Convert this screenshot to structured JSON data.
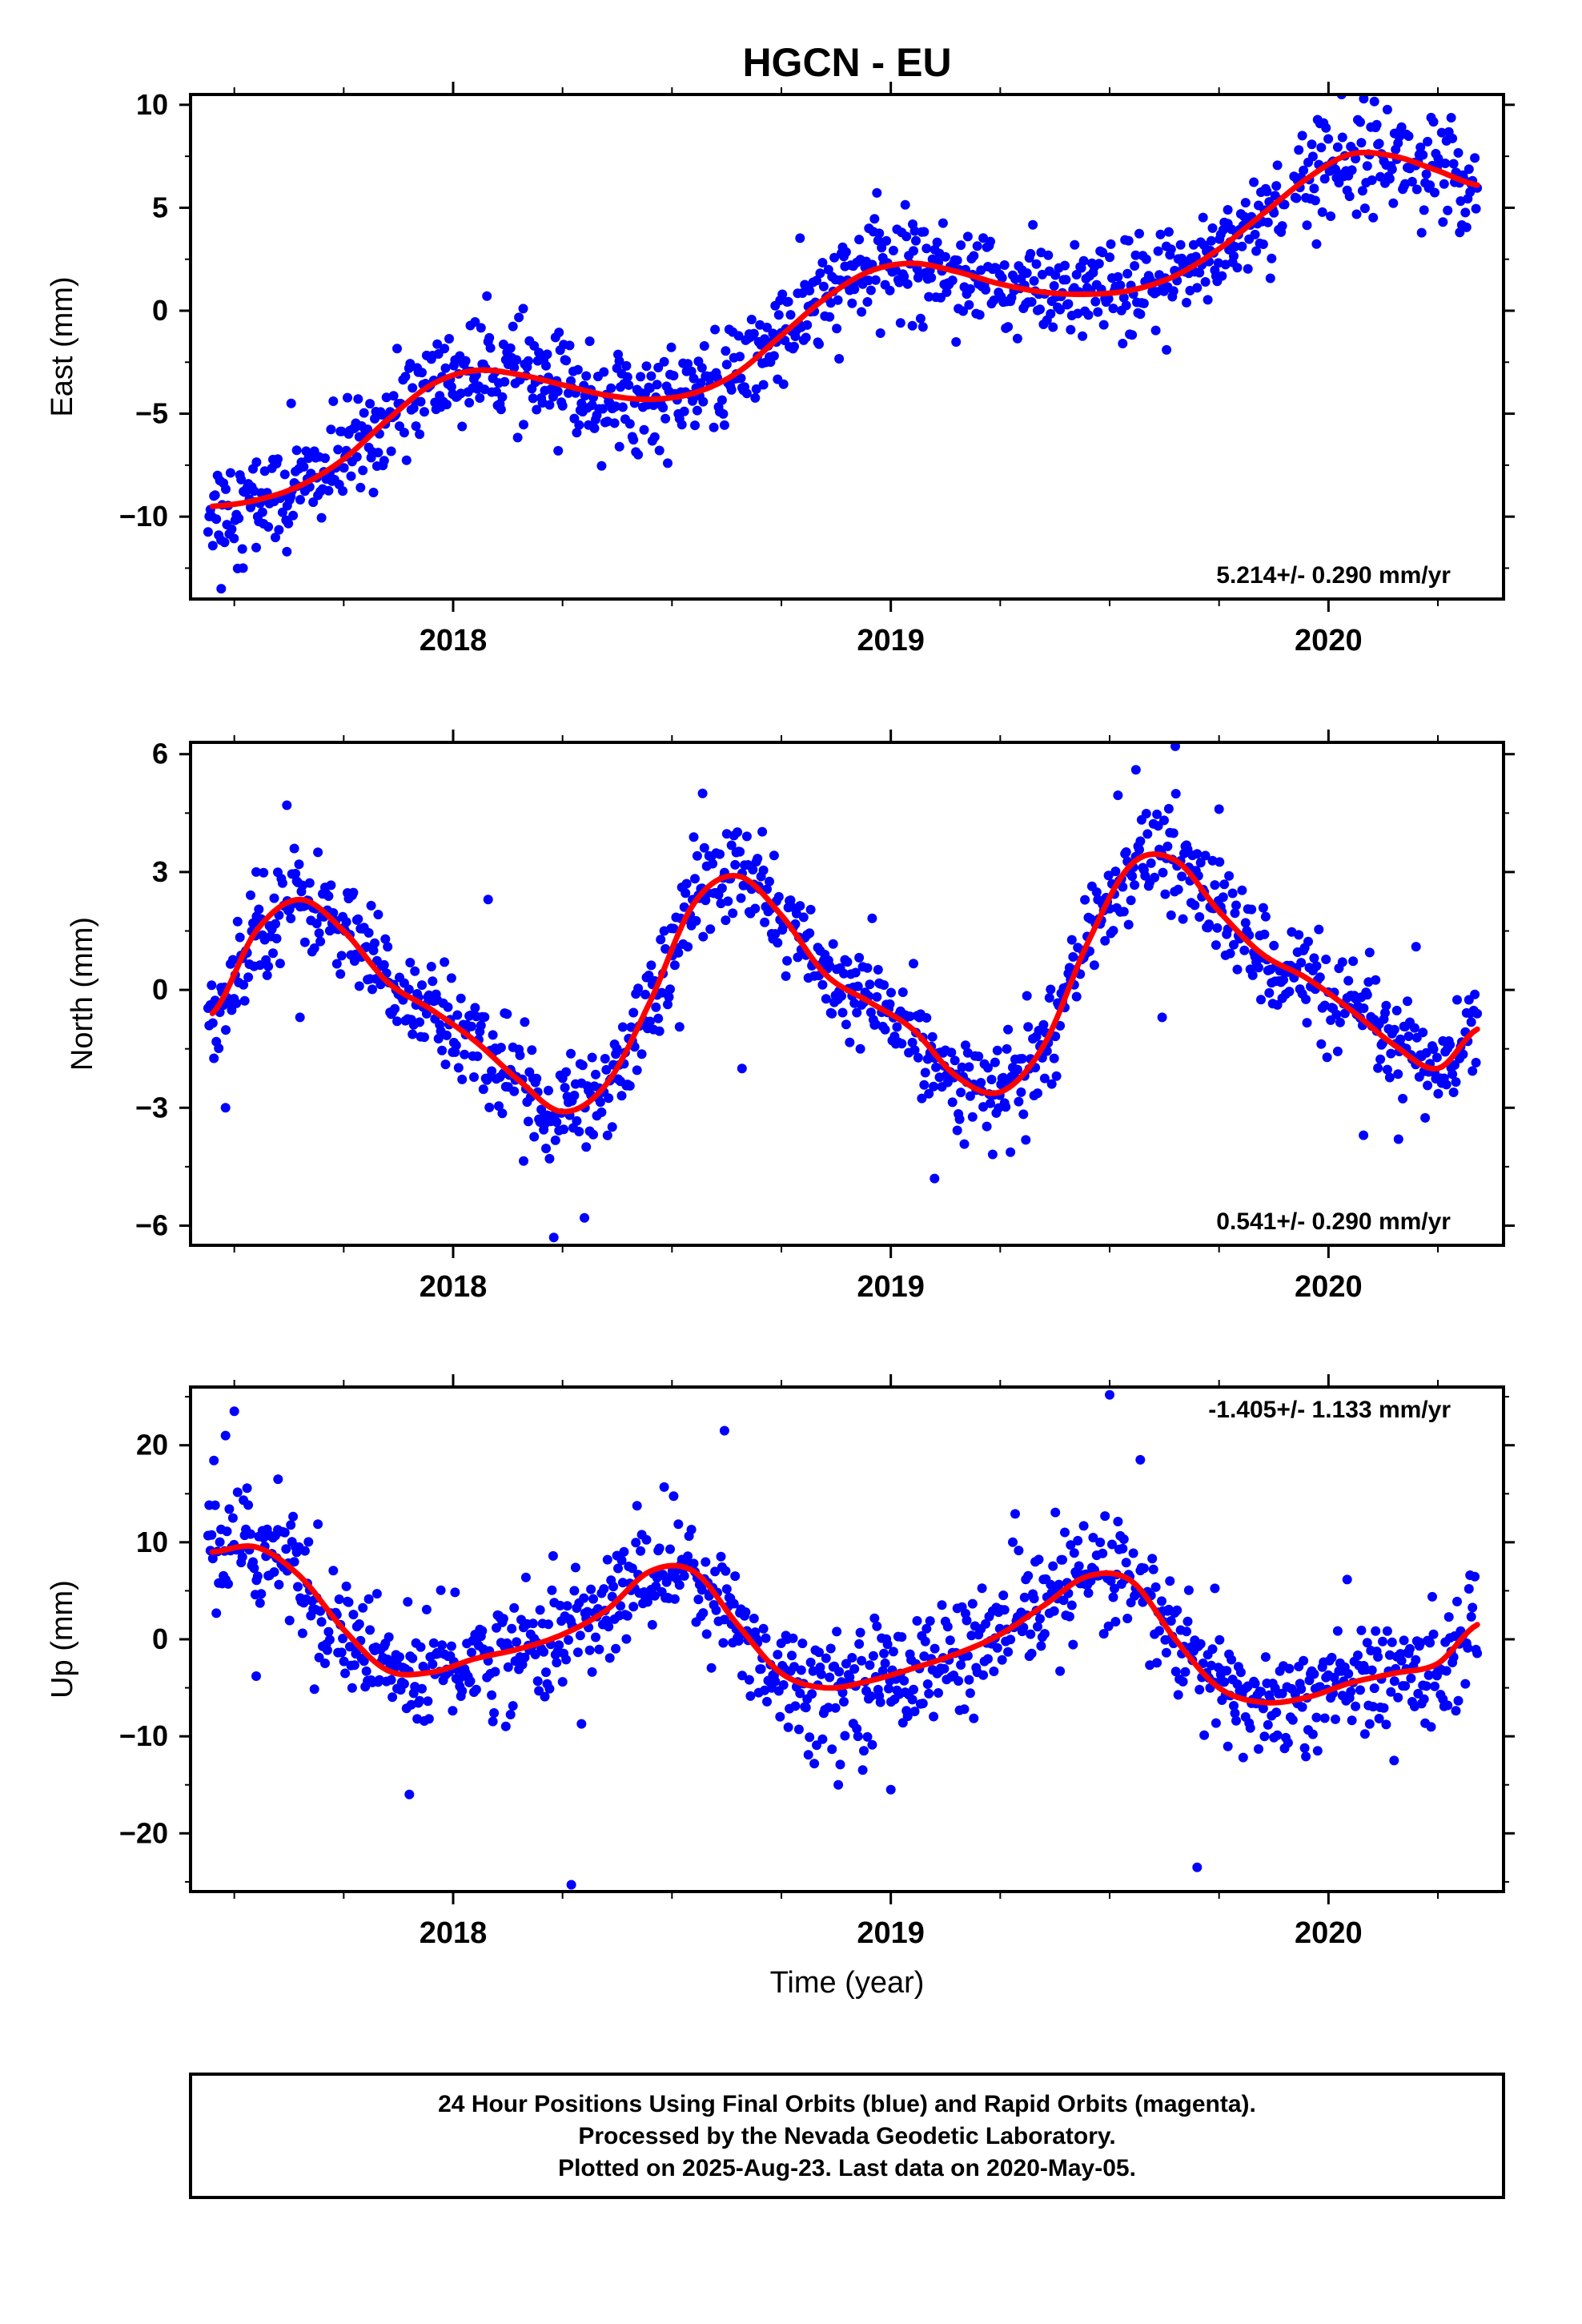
{
  "title": "HGCN - EU",
  "colors": {
    "points": "#0000ff",
    "fit": "#ff0000",
    "frame": "#000000"
  },
  "chart_data": [
    {
      "type": "scatter",
      "ylabel": "East (mm)",
      "xlim": [
        2017.4,
        2020.4
      ],
      "ylim": [
        -14,
        10.5
      ],
      "yticks": [
        "10",
        "5",
        "0",
        "−5",
        "−10"
      ],
      "ytick_values": [
        10,
        5,
        0,
        -5,
        -10
      ],
      "xticks": [
        "2018",
        "2019",
        "2020"
      ],
      "xtick_values": [
        2018,
        2019,
        2020
      ],
      "rate": "5.214+/- 0.290 mm/yr",
      "rate_pos": "bottom-right",
      "fit_x": [
        2017.45,
        2017.55,
        2017.65,
        2017.75,
        2017.85,
        2017.95,
        2018.05,
        2018.15,
        2018.25,
        2018.35,
        2018.45,
        2018.55,
        2018.65,
        2018.75,
        2018.85,
        2018.95,
        2019.05,
        2019.15,
        2019.25,
        2019.35,
        2019.45,
        2019.55,
        2019.65,
        2019.75,
        2019.85,
        2019.95,
        2020.05,
        2020.15,
        2020.25,
        2020.34
      ],
      "fit_y": [
        -9.5,
        -9.2,
        -8.5,
        -7.2,
        -5.3,
        -3.6,
        -2.9,
        -3.1,
        -3.6,
        -4.1,
        -4.3,
        -4.0,
        -3.0,
        -1.2,
        0.6,
        1.9,
        2.3,
        1.9,
        1.3,
        0.9,
        0.8,
        1.0,
        1.7,
        3.0,
        4.7,
        6.4,
        7.6,
        7.5,
        6.8,
        6.1
      ],
      "noise": 1.2,
      "outliers": [
        [
          2017.47,
          -13.5
        ],
        [
          2017.52,
          -12.5
        ],
        [
          2017.55,
          -11.5
        ],
        [
          2017.62,
          -11.7
        ],
        [
          2017.63,
          -4.5
        ],
        [
          2018.16,
          0.1
        ],
        [
          2018.24,
          -6.8
        ],
        [
          2018.38,
          -6.6
        ],
        [
          2018.95,
          4.0
        ],
        [
          2019.05,
          4.2
        ],
        [
          2019.42,
          3.2
        ],
        [
          2019.63,
          -1.9
        ],
        [
          2019.77,
          4.9
        ],
        [
          2020.03,
          10.5
        ],
        [
          2020.3,
          3.8
        ]
      ]
    },
    {
      "type": "scatter",
      "ylabel": "North (mm)",
      "xlim": [
        2017.4,
        2020.4
      ],
      "ylim": [
        -6.5,
        6.3
      ],
      "yticks": [
        "6",
        "3",
        "0",
        "−3",
        "−6"
      ],
      "ytick_values": [
        6,
        3,
        0,
        -3,
        -6
      ],
      "xticks": [
        "2018",
        "2019",
        "2020"
      ],
      "xtick_values": [
        2018,
        2019,
        2020
      ],
      "rate": "0.541+/- 0.290 mm/yr",
      "rate_pos": "bottom-right",
      "fit_x": [
        2017.45,
        2017.55,
        2017.65,
        2017.75,
        2017.85,
        2017.95,
        2018.05,
        2018.15,
        2018.25,
        2018.35,
        2018.45,
        2018.55,
        2018.65,
        2018.75,
        2018.85,
        2018.95,
        2019.05,
        2019.15,
        2019.25,
        2019.35,
        2019.45,
        2019.55,
        2019.65,
        2019.75,
        2019.85,
        2019.95,
        2020.05,
        2020.15,
        2020.25,
        2020.34
      ],
      "fit_y": [
        -0.6,
        1.5,
        2.3,
        1.5,
        0.2,
        -0.5,
        -1.3,
        -2.3,
        -3.1,
        -2.4,
        -0.3,
        2.2,
        2.9,
        1.9,
        0.4,
        -0.3,
        -1.0,
        -2.2,
        -2.6,
        -1.4,
        1.2,
        3.2,
        3.3,
        2.0,
        0.9,
        0.3,
        -0.5,
        -1.4,
        -2.0,
        -1.0
      ],
      "noise": 0.65,
      "outliers": [
        [
          2017.48,
          -3.0
        ],
        [
          2017.55,
          3.0
        ],
        [
          2017.62,
          4.7
        ],
        [
          2017.65,
          -0.7
        ],
        [
          2018.08,
          2.3
        ],
        [
          2018.23,
          -6.3
        ],
        [
          2018.3,
          -5.8
        ],
        [
          2018.57,
          5.0
        ],
        [
          2018.66,
          -2.0
        ],
        [
          2019.1,
          -4.8
        ],
        [
          2019.56,
          5.6
        ],
        [
          2019.65,
          6.2
        ],
        [
          2019.75,
          4.6
        ],
        [
          2020.08,
          -3.7
        ],
        [
          2020.16,
          -3.8
        ],
        [
          2020.2,
          1.1
        ],
        [
          2019.62,
          -0.7
        ]
      ]
    },
    {
      "type": "scatter",
      "ylabel": "Up (mm)",
      "xlabel": "Time (year)",
      "xlim": [
        2017.4,
        2020.4
      ],
      "ylim": [
        -26,
        26
      ],
      "yticks": [
        "20",
        "10",
        "0",
        "−10",
        "−20"
      ],
      "ytick_values": [
        20,
        10,
        0,
        -10,
        -20
      ],
      "xticks": [
        "2018",
        "2019",
        "2020"
      ],
      "xtick_values": [
        2018,
        2019,
        2020
      ],
      "rate": "-1.405+/- 1.133 mm/yr",
      "rate_pos": "top-right",
      "fit_x": [
        2017.45,
        2017.55,
        2017.65,
        2017.75,
        2017.85,
        2017.95,
        2018.05,
        2018.15,
        2018.25,
        2018.35,
        2018.45,
        2018.55,
        2018.65,
        2018.75,
        2018.85,
        2018.95,
        2019.05,
        2019.15,
        2019.25,
        2019.35,
        2019.45,
        2019.55,
        2019.65,
        2019.75,
        2019.85,
        2019.95,
        2020.05,
        2020.15,
        2020.25,
        2020.34
      ],
      "fit_y": [
        9.0,
        9.5,
        6.5,
        1.0,
        -3.2,
        -3.4,
        -2.0,
        -1.0,
        0.5,
        3.0,
        7.0,
        7.0,
        1.5,
        -3.5,
        -5.0,
        -4.3,
        -3.0,
        -1.5,
        0.5,
        3.5,
        6.5,
        6.0,
        0.0,
        -5.0,
        -6.5,
        -6.0,
        -4.5,
        -3.5,
        -2.5,
        1.5
      ],
      "noise": 3.0,
      "outliers": [
        [
          2017.48,
          21.0
        ],
        [
          2017.5,
          23.5
        ],
        [
          2017.55,
          -3.8
        ],
        [
          2017.6,
          16.5
        ],
        [
          2017.9,
          -16.0
        ],
        [
          2018.27,
          -25.3
        ],
        [
          2018.62,
          21.5
        ],
        [
          2018.88,
          -15.0
        ],
        [
          2019.0,
          -15.5
        ],
        [
          2019.5,
          25.2
        ],
        [
          2019.57,
          18.5
        ],
        [
          2019.7,
          -23.5
        ],
        [
          2020.15,
          -12.5
        ]
      ]
    }
  ],
  "footer": {
    "line1": "24 Hour Positions Using Final Orbits (blue) and Rapid Orbits (magenta).",
    "line2": "Processed by the Nevada Geodetic Laboratory.",
    "line3": "Plotted on 2025-Aug-23. Last data on 2020-May-05."
  }
}
